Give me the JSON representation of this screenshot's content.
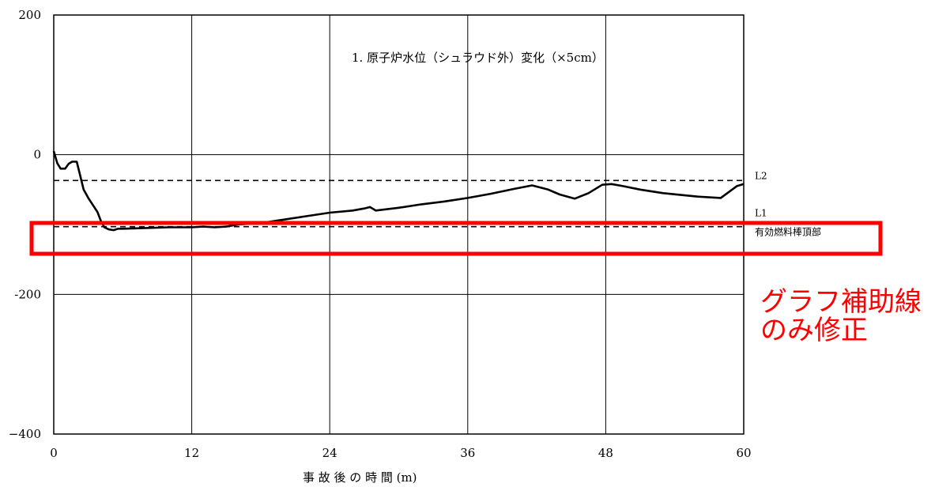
{
  "chart_data": {
    "type": "line",
    "title": "1. 原子炉水位（シュラウド外）変化（×5cm）",
    "xlabel": "事 故 後 の 時 間 (m)",
    "ylabel": "",
    "xlim": [
      0,
      60
    ],
    "ylim": [
      -400,
      200
    ],
    "xticks": [
      0,
      12,
      24,
      36,
      48,
      60
    ],
    "yticks": [
      200,
      0,
      -200,
      -400
    ],
    "grid": true,
    "series": [
      {
        "x": [
          0,
          0.3,
          0.6,
          1.0,
          1.3,
          1.6,
          2.0,
          2.3,
          2.6,
          3.0,
          3.4,
          3.8,
          4.1,
          4.4,
          4.8,
          5.2,
          5.6,
          6,
          8,
          10,
          12,
          13,
          14,
          15,
          16,
          18,
          20,
          22,
          24,
          26,
          27,
          27.5,
          28,
          30,
          32,
          34,
          36,
          38,
          40,
          41.6,
          43,
          44,
          45.3,
          46.5,
          47.7,
          48.5,
          49.5,
          51,
          53,
          56,
          58,
          59.4,
          60
        ],
        "values": [
          5,
          -12,
          -20,
          -20,
          -13,
          -10,
          -10,
          -30,
          -50,
          -62,
          -72,
          -82,
          -95,
          -104,
          -107,
          -108,
          -106,
          -106,
          -105,
          -104,
          -104,
          -103,
          -104,
          -103,
          -100,
          -98,
          -93,
          -88,
          -83,
          -80,
          -77,
          -75,
          -80,
          -76,
          -71,
          -67,
          -62,
          -56,
          -49,
          -44,
          -50,
          -57,
          -63,
          -55,
          -43,
          -42,
          -45,
          -50,
          -55,
          -60,
          -62,
          -45,
          -42
        ]
      }
    ],
    "reference_lines": [
      {
        "label": "L2",
        "y": -37
      },
      {
        "label": "L1",
        "y": -103
      },
      {
        "label": "有効燃料棒頂部",
        "y": -103
      }
    ],
    "highlight_annotation": "グラフ補助線\nのみ修正",
    "colors": {
      "line": "#000000",
      "grid": "#000000",
      "highlight": "#ff0000"
    }
  }
}
